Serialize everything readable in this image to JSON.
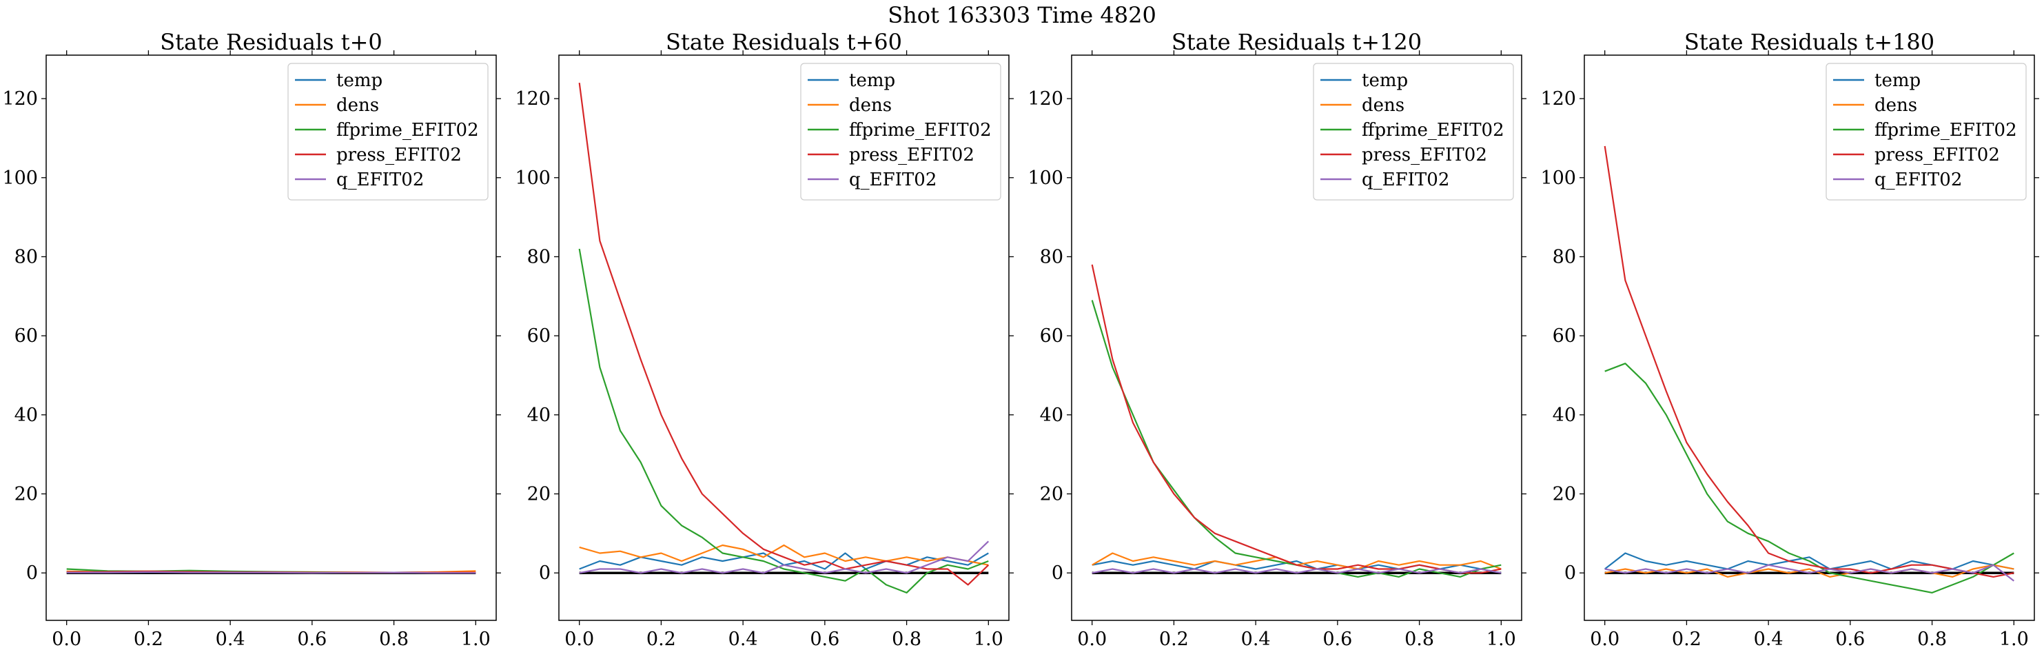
{
  "suptitle": "Shot 163303   Time 4820",
  "legend": [
    "temp",
    "dens",
    "ffprime_EFIT02",
    "press_EFIT02",
    "q_EFIT02"
  ],
  "colors": [
    "#1f77b4",
    "#ff7f0e",
    "#2ca02c",
    "#d62728",
    "#9467bd"
  ],
  "chart_data": [
    {
      "type": "line",
      "title": "State Residuals t+0",
      "xlim": [
        -0.05,
        1.05
      ],
      "ylim": [
        -12,
        131
      ],
      "xticks": [
        0.0,
        0.2,
        0.4,
        0.6,
        0.8,
        1.0
      ],
      "yticks": [
        0,
        20,
        40,
        60,
        80,
        100,
        120
      ],
      "legend_position": "upper right",
      "zero_line": true,
      "x": [
        0.0,
        0.1,
        0.2,
        0.3,
        0.4,
        0.5,
        0.6,
        0.7,
        0.8,
        0.9,
        1.0
      ],
      "series": [
        {
          "name": "temp",
          "values": [
            0.3,
            0.2,
            0.2,
            0.3,
            0.2,
            0.2,
            0.1,
            0.1,
            0.1,
            0.2,
            0.1
          ]
        },
        {
          "name": "dens",
          "values": [
            0.4,
            0.3,
            0.4,
            0.3,
            0.3,
            0.2,
            0.2,
            0.2,
            0.1,
            0.2,
            0.5
          ]
        },
        {
          "name": "ffprime_EFIT02",
          "values": [
            1.0,
            0.5,
            0.4,
            0.6,
            0.4,
            0.3,
            0.2,
            0.1,
            0.1,
            0.1,
            0.1
          ]
        },
        {
          "name": "press_EFIT02",
          "values": [
            0.2,
            0.3,
            0.4,
            0.3,
            0.2,
            0.2,
            0.1,
            0.1,
            0.1,
            0.1,
            0.1
          ]
        },
        {
          "name": "q_EFIT02",
          "values": [
            0.1,
            0.1,
            0.2,
            0.1,
            0.1,
            0.1,
            0.0,
            0.1,
            0.1,
            0.0,
            0.0
          ]
        }
      ]
    },
    {
      "type": "line",
      "title": "State Residuals t+60",
      "xlim": [
        -0.05,
        1.05
      ],
      "ylim": [
        -12,
        131
      ],
      "xticks": [
        0.0,
        0.2,
        0.4,
        0.6,
        0.8,
        1.0
      ],
      "yticks": [
        0,
        20,
        40,
        60,
        80,
        100,
        120
      ],
      "legend_position": "upper right",
      "zero_line": true,
      "x": [
        0.0,
        0.05,
        0.1,
        0.15,
        0.2,
        0.25,
        0.3,
        0.35,
        0.4,
        0.45,
        0.5,
        0.55,
        0.6,
        0.65,
        0.7,
        0.75,
        0.8,
        0.85,
        0.9,
        0.95,
        1.0
      ],
      "series": [
        {
          "name": "temp",
          "values": [
            1,
            3,
            2,
            4,
            3,
            2,
            4,
            3,
            4,
            5,
            2,
            3,
            1,
            5,
            1,
            3,
            2,
            4,
            3,
            2,
            5
          ]
        },
        {
          "name": "dens",
          "values": [
            6.5,
            5,
            5.5,
            4,
            5,
            3,
            5,
            7,
            6,
            4,
            7,
            4,
            5,
            3,
            4,
            3,
            4,
            3,
            4,
            3,
            2
          ]
        },
        {
          "name": "ffprime_EFIT02",
          "values": [
            82,
            52,
            36,
            28,
            17,
            12,
            9,
            5,
            4,
            3,
            1,
            0,
            -1,
            -2,
            1,
            -3,
            -5,
            0,
            2,
            1,
            3
          ]
        },
        {
          "name": "press_EFIT02",
          "values": [
            124,
            84,
            69,
            54,
            40,
            29,
            20,
            15,
            10,
            6,
            4,
            2,
            3,
            1,
            2,
            3,
            2,
            1,
            1,
            -3,
            2
          ]
        },
        {
          "name": "q_EFIT02",
          "values": [
            0,
            1,
            1,
            0,
            1,
            0,
            1,
            0,
            1,
            0,
            2,
            1,
            0,
            1,
            0,
            1,
            0,
            2,
            4,
            3,
            8
          ]
        }
      ]
    },
    {
      "type": "line",
      "title": "State Residuals t+120",
      "xlim": [
        -0.05,
        1.05
      ],
      "ylim": [
        -12,
        131
      ],
      "xticks": [
        0.0,
        0.2,
        0.4,
        0.6,
        0.8,
        1.0
      ],
      "yticks": [
        0,
        20,
        40,
        60,
        80,
        100,
        120
      ],
      "legend_position": "upper right",
      "zero_line": true,
      "x": [
        0.0,
        0.05,
        0.1,
        0.15,
        0.2,
        0.25,
        0.3,
        0.35,
        0.4,
        0.45,
        0.5,
        0.55,
        0.6,
        0.65,
        0.7,
        0.75,
        0.8,
        0.85,
        0.9,
        0.95,
        1.0
      ],
      "series": [
        {
          "name": "temp",
          "values": [
            2,
            3,
            2,
            3,
            2,
            1,
            3,
            2,
            1,
            2,
            3,
            1,
            2,
            1,
            2,
            1,
            2,
            1,
            2,
            1,
            0
          ]
        },
        {
          "name": "dens",
          "values": [
            2,
            5,
            3,
            4,
            3,
            2,
            3,
            2,
            3,
            4,
            2,
            3,
            2,
            1,
            3,
            2,
            3,
            2,
            2,
            3,
            1
          ]
        },
        {
          "name": "ffprime_EFIT02",
          "values": [
            69,
            52,
            40,
            28,
            21,
            14,
            9,
            5,
            4,
            3,
            2,
            1,
            0,
            -1,
            0,
            -1,
            1,
            0,
            -1,
            1,
            2
          ]
        },
        {
          "name": "press_EFIT02",
          "values": [
            78,
            54,
            38,
            28,
            20,
            14,
            10,
            8,
            6,
            4,
            2,
            1,
            1,
            2,
            1,
            1,
            2,
            1,
            0,
            0,
            1
          ]
        },
        {
          "name": "q_EFIT02",
          "values": [
            0,
            1,
            0,
            1,
            0,
            1,
            0,
            1,
            0,
            1,
            0,
            1,
            0,
            1,
            0,
            1,
            0,
            1,
            0,
            1,
            0
          ]
        }
      ]
    },
    {
      "type": "line",
      "title": "State Residuals t+180",
      "xlim": [
        -0.05,
        1.05
      ],
      "ylim": [
        -12,
        131
      ],
      "xticks": [
        0.0,
        0.2,
        0.4,
        0.6,
        0.8,
        1.0
      ],
      "yticks": [
        0,
        20,
        40,
        60,
        80,
        100,
        120
      ],
      "legend_position": "upper right",
      "zero_line": true,
      "x": [
        0.0,
        0.05,
        0.1,
        0.15,
        0.2,
        0.25,
        0.3,
        0.35,
        0.4,
        0.45,
        0.5,
        0.55,
        0.6,
        0.65,
        0.7,
        0.75,
        0.8,
        0.85,
        0.9,
        0.95,
        1.0
      ],
      "series": [
        {
          "name": "temp",
          "values": [
            1,
            5,
            3,
            2,
            3,
            2,
            1,
            3,
            2,
            3,
            4,
            1,
            2,
            3,
            1,
            3,
            2,
            1,
            3,
            2,
            1
          ]
        },
        {
          "name": "dens",
          "values": [
            0,
            1,
            0,
            1,
            0,
            1,
            -1,
            0,
            1,
            0,
            1,
            -1,
            0,
            1,
            0,
            1,
            0,
            -1,
            1,
            2,
            1
          ]
        },
        {
          "name": "ffprime_EFIT02",
          "values": [
            51,
            53,
            48,
            40,
            30,
            20,
            13,
            10,
            8,
            5,
            3,
            0,
            -1,
            -2,
            -3,
            -4,
            -5,
            -3,
            -1,
            2,
            5
          ]
        },
        {
          "name": "press_EFIT02",
          "values": [
            108,
            74,
            60,
            46,
            33,
            25,
            18,
            12,
            5,
            3,
            2,
            1,
            1,
            0,
            1,
            2,
            2,
            1,
            0,
            -1,
            0
          ]
        },
        {
          "name": "q_EFIT02",
          "values": [
            1,
            0,
            1,
            0,
            1,
            0,
            1,
            0,
            2,
            1,
            0,
            1,
            0,
            1,
            0,
            1,
            0,
            1,
            0,
            2,
            -2
          ]
        }
      ]
    }
  ]
}
